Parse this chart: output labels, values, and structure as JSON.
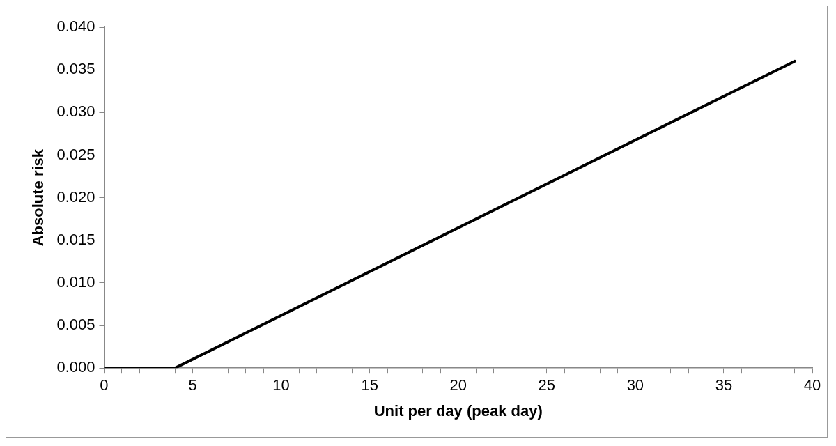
{
  "chart_data": {
    "type": "line",
    "xlabel": "Unit per day (peak day)",
    "ylabel": "Absolute risk",
    "x": [
      0,
      4,
      39
    ],
    "series": [
      {
        "color": "#000000",
        "values": [
          0,
          0,
          0.036
        ]
      }
    ],
    "xlim": [
      0,
      40
    ],
    "xticks": [
      0,
      {
        "value": 1,
        "label": null
      },
      {
        "value": 2,
        "label": null
      },
      {
        "value": 3,
        "label": null
      },
      {
        "value": 4,
        "label": null
      },
      5,
      {
        "value": 6,
        "label": null
      },
      {
        "value": 7,
        "label": null
      },
      {
        "value": 8,
        "label": null
      },
      {
        "value": 9,
        "label": null
      },
      10,
      {
        "value": 11,
        "label": null
      },
      {
        "value": 12,
        "label": null
      },
      {
        "value": 13,
        "label": null
      },
      {
        "value": 14,
        "label": null
      },
      15,
      {
        "value": 16,
        "label": null
      },
      {
        "value": 17,
        "label": null
      },
      {
        "value": 18,
        "label": null
      },
      {
        "value": 19,
        "label": null
      },
      20,
      {
        "value": 21,
        "label": null
      },
      {
        "value": 22,
        "label": null
      },
      {
        "value": 23,
        "label": null
      },
      {
        "value": 24,
        "label": null
      },
      25,
      {
        "value": 26,
        "label": null
      },
      {
        "value": 27,
        "label": null
      },
      {
        "value": 28,
        "label": null
      },
      {
        "value": 29,
        "label": null
      },
      30,
      {
        "value": 31,
        "label": null
      },
      {
        "value": 32,
        "label": null
      },
      {
        "value": 33,
        "label": null
      },
      {
        "value": 34,
        "label": null
      },
      35,
      {
        "value": 36,
        "label": null
      },
      {
        "value": 37,
        "label": null
      },
      {
        "value": 38,
        "label": null
      },
      {
        "value": 39,
        "label": null
      },
      40
    ],
    "ylim": [
      0,
      0.04
    ],
    "yticks": [
      {
        "value": 0,
        "label": "0.000"
      },
      {
        "value": 0.005,
        "label": "0.005"
      },
      {
        "value": 0.01,
        "label": "0.010"
      },
      {
        "value": 0.015,
        "label": "0.015"
      },
      {
        "value": 0.02,
        "label": "0.020"
      },
      {
        "value": 0.025,
        "label": "0.025"
      },
      {
        "value": 0.03,
        "label": "0.030"
      },
      {
        "value": 0.035,
        "label": "0.035"
      },
      {
        "value": 0.04,
        "label": "0.040"
      }
    ],
    "grid": false,
    "legend": false,
    "marker": "none",
    "line_style": "solid"
  }
}
